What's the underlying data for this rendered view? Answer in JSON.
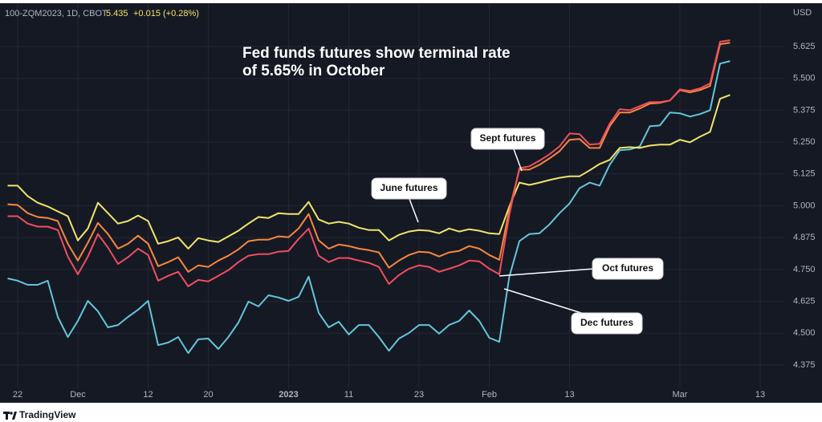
{
  "header": {
    "symbol": "100-ZQM2023, 1D, CBOT",
    "last": 5.435,
    "change": "+0.015 (+0.28%)",
    "currency": "USD"
  },
  "footer": {
    "brand": "TradingView"
  },
  "chart_data": {
    "type": "line",
    "title": [
      "Fed funds futures show terminal rate",
      "of 5.65% in October"
    ],
    "categories": [
      null,
      "22",
      null,
      null,
      null,
      null,
      null,
      "Dec",
      null,
      null,
      null,
      null,
      null,
      null,
      "12",
      null,
      null,
      null,
      null,
      null,
      "20",
      null,
      null,
      null,
      null,
      null,
      null,
      null,
      "2023",
      null,
      null,
      null,
      null,
      null,
      "11",
      null,
      null,
      null,
      null,
      null,
      null,
      "23",
      null,
      null,
      null,
      null,
      null,
      null,
      "Feb",
      null,
      null,
      null,
      null,
      null,
      null,
      null,
      "13",
      null,
      null,
      null,
      null,
      null,
      null,
      null,
      null,
      null,
      null,
      "Mar",
      null,
      null,
      null,
      null,
      null,
      null,
      null,
      "13",
      null,
      null
    ],
    "series": [
      {
        "name": "June futures",
        "color": "#f2e36a",
        "values": [
          5.079,
          5.079,
          5.038,
          5.012,
          4.997,
          4.978,
          4.959,
          4.864,
          4.911,
          5.012,
          4.971,
          4.93,
          4.94,
          4.962,
          4.94,
          4.851,
          4.861,
          4.876,
          4.832,
          4.873,
          4.864,
          4.858,
          4.88,
          4.902,
          4.93,
          4.956,
          4.952,
          4.971,
          4.968,
          4.968,
          5.015,
          4.946,
          4.93,
          4.937,
          4.93,
          4.914,
          4.905,
          4.905,
          4.864,
          4.886,
          4.899,
          4.905,
          4.902,
          4.892,
          4.911,
          4.899,
          4.908,
          4.902,
          4.892,
          4.889,
          4.997,
          5.091,
          5.082,
          5.091,
          5.101,
          5.11,
          5.116,
          5.116,
          5.139,
          5.164,
          5.18,
          5.227,
          5.23,
          5.227,
          5.236,
          5.24,
          5.24,
          5.259,
          5.249,
          5.271,
          5.29,
          5.42,
          5.435,
          null,
          null,
          null,
          null,
          null
        ]
      },
      {
        "name": "Sept futures",
        "color": "#f7873e",
        "values": [
          5.006,
          5.003,
          4.971,
          4.956,
          4.952,
          4.94,
          4.851,
          4.785,
          4.855,
          4.933,
          4.889,
          4.832,
          4.851,
          4.883,
          4.851,
          4.763,
          4.779,
          4.798,
          4.741,
          4.766,
          4.76,
          4.785,
          4.804,
          4.829,
          4.861,
          4.867,
          4.867,
          4.88,
          4.877,
          4.911,
          4.968,
          4.864,
          4.832,
          4.848,
          4.842,
          4.832,
          4.826,
          4.817,
          4.757,
          4.785,
          4.807,
          4.82,
          4.817,
          4.801,
          4.817,
          4.823,
          4.842,
          4.832,
          4.807,
          4.788,
          4.984,
          5.142,
          5.142,
          5.161,
          5.186,
          5.214,
          5.259,
          5.262,
          5.227,
          5.227,
          5.312,
          5.366,
          5.366,
          5.382,
          5.401,
          5.404,
          5.413,
          5.454,
          5.445,
          5.454,
          5.47,
          5.634,
          5.64,
          null,
          null,
          null,
          null,
          null
        ]
      },
      {
        "name": "Oct futures",
        "color": "#f04e5f",
        "values": [
          4.959,
          4.959,
          4.93,
          4.918,
          4.918,
          4.905,
          4.801,
          4.731,
          4.801,
          4.889,
          4.836,
          4.772,
          4.798,
          4.832,
          4.807,
          4.706,
          4.725,
          4.741,
          4.684,
          4.709,
          4.703,
          4.725,
          4.747,
          4.779,
          4.804,
          4.81,
          4.81,
          4.82,
          4.823,
          4.87,
          4.911,
          4.804,
          4.779,
          4.795,
          4.795,
          4.785,
          4.776,
          4.76,
          4.693,
          4.728,
          4.753,
          4.766,
          4.76,
          4.741,
          4.753,
          4.766,
          4.785,
          4.782,
          4.753,
          4.731,
          4.965,
          5.148,
          5.155,
          5.177,
          5.202,
          5.233,
          5.284,
          5.281,
          5.24,
          5.243,
          5.322,
          5.379,
          5.375,
          5.391,
          5.407,
          5.407,
          5.413,
          5.457,
          5.451,
          5.461,
          5.48,
          5.644,
          5.65,
          null,
          null,
          null,
          null,
          null
        ]
      },
      {
        "name": "Dec futures",
        "color": "#64c5d9",
        "values": [
          4.715,
          4.706,
          4.69,
          4.69,
          4.706,
          4.564,
          4.485,
          4.548,
          4.627,
          4.586,
          4.523,
          4.532,
          4.564,
          4.592,
          4.627,
          4.453,
          4.463,
          4.485,
          4.422,
          4.476,
          4.479,
          4.438,
          4.485,
          4.542,
          4.624,
          4.605,
          4.649,
          4.64,
          4.627,
          4.643,
          4.722,
          4.58,
          4.523,
          4.545,
          4.495,
          4.532,
          4.532,
          4.485,
          4.431,
          4.479,
          4.501,
          4.532,
          4.532,
          4.498,
          4.532,
          4.548,
          4.589,
          4.548,
          4.482,
          4.466,
          4.722,
          4.861,
          4.889,
          4.892,
          4.927,
          4.971,
          5.009,
          5.069,
          5.091,
          5.079,
          5.161,
          5.218,
          5.221,
          5.233,
          5.312,
          5.315,
          5.366,
          5.363,
          5.35,
          5.36,
          5.375,
          5.558,
          5.568,
          null,
          null,
          null,
          null,
          null
        ]
      }
    ],
    "ylim": [
      4.227,
      5.795
    ],
    "yticks": [
      4.375,
      {
        "value": 4.5,
        "label": "4.500"
      },
      4.625,
      {
        "value": 4.75,
        "label": "4.750"
      },
      4.875,
      {
        "value": 5.0,
        "label": "5.000"
      },
      5.125,
      {
        "value": 5.25,
        "label": "5.250"
      },
      5.375,
      {
        "value": 5.5,
        "label": "5.500"
      },
      5.625
    ],
    "grid": true
  }
}
